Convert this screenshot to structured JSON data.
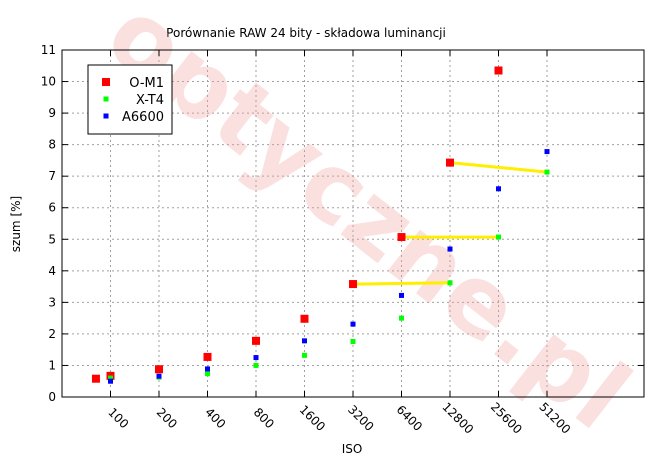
{
  "chart_data": {
    "type": "scatter",
    "title": "Porównanie RAW 24 bity - składowa luminancji",
    "xlabel": "ISO",
    "ylabel": "szum [%]",
    "x_categories": [
      "100",
      "200",
      "400",
      "800",
      "1600",
      "3200",
      "6400",
      "12800",
      "25600",
      "51200"
    ],
    "xlim": [
      -1,
      11
    ],
    "ylim": [
      0,
      11
    ],
    "y_ticks": [
      "0",
      "1",
      "2",
      "3",
      "4",
      "5",
      "6",
      "7",
      "8",
      "9",
      "10",
      "11"
    ],
    "grid": true,
    "legend_position": "top-left",
    "watermark": "optyczne.pl",
    "series": [
      {
        "name": "O-M1",
        "color": "#ff0000",
        "points": [
          {
            "x": -0.3,
            "y": 0.58
          },
          {
            "x": 0,
            "y": 0.67
          },
          {
            "x": 1,
            "y": 0.88
          },
          {
            "x": 2,
            "y": 1.27
          },
          {
            "x": 3,
            "y": 1.78
          },
          {
            "x": 4,
            "y": 2.48
          },
          {
            "x": 5,
            "y": 3.58
          },
          {
            "x": 6,
            "y": 5.07
          },
          {
            "x": 7,
            "y": 7.43
          },
          {
            "x": 8,
            "y": 10.35
          }
        ]
      },
      {
        "name": "X-T4",
        "color": "#00ff00",
        "points": [
          {
            "x": 0,
            "y": 0.6
          },
          {
            "x": 1,
            "y": 0.63
          },
          {
            "x": 2,
            "y": 0.74
          },
          {
            "x": 3,
            "y": 1.0
          },
          {
            "x": 4,
            "y": 1.32
          },
          {
            "x": 5,
            "y": 1.76
          },
          {
            "x": 6,
            "y": 2.5
          },
          {
            "x": 7,
            "y": 3.62
          },
          {
            "x": 8,
            "y": 5.07
          },
          {
            "x": 9,
            "y": 7.13
          }
        ]
      },
      {
        "name": "A6600",
        "color": "#0000ff",
        "points": [
          {
            "x": 0,
            "y": 0.5
          },
          {
            "x": 1,
            "y": 0.66
          },
          {
            "x": 2,
            "y": 0.89
          },
          {
            "x": 3,
            "y": 1.25
          },
          {
            "x": 4,
            "y": 1.78
          },
          {
            "x": 5,
            "y": 2.31
          },
          {
            "x": 6,
            "y": 3.22
          },
          {
            "x": 7,
            "y": 4.69
          },
          {
            "x": 8,
            "y": 6.6
          },
          {
            "x": 9,
            "y": 7.78
          }
        ]
      }
    ],
    "comparison_lines": [
      {
        "color": "#ffee00",
        "x1": 5,
        "y1": 3.58,
        "x2": 7,
        "y2": 3.62
      },
      {
        "color": "#ffee00",
        "x1": 6,
        "y1": 5.07,
        "x2": 8,
        "y2": 5.07
      },
      {
        "color": "#ffee00",
        "x1": 7,
        "y1": 7.43,
        "x2": 9,
        "y2": 7.13
      }
    ]
  }
}
